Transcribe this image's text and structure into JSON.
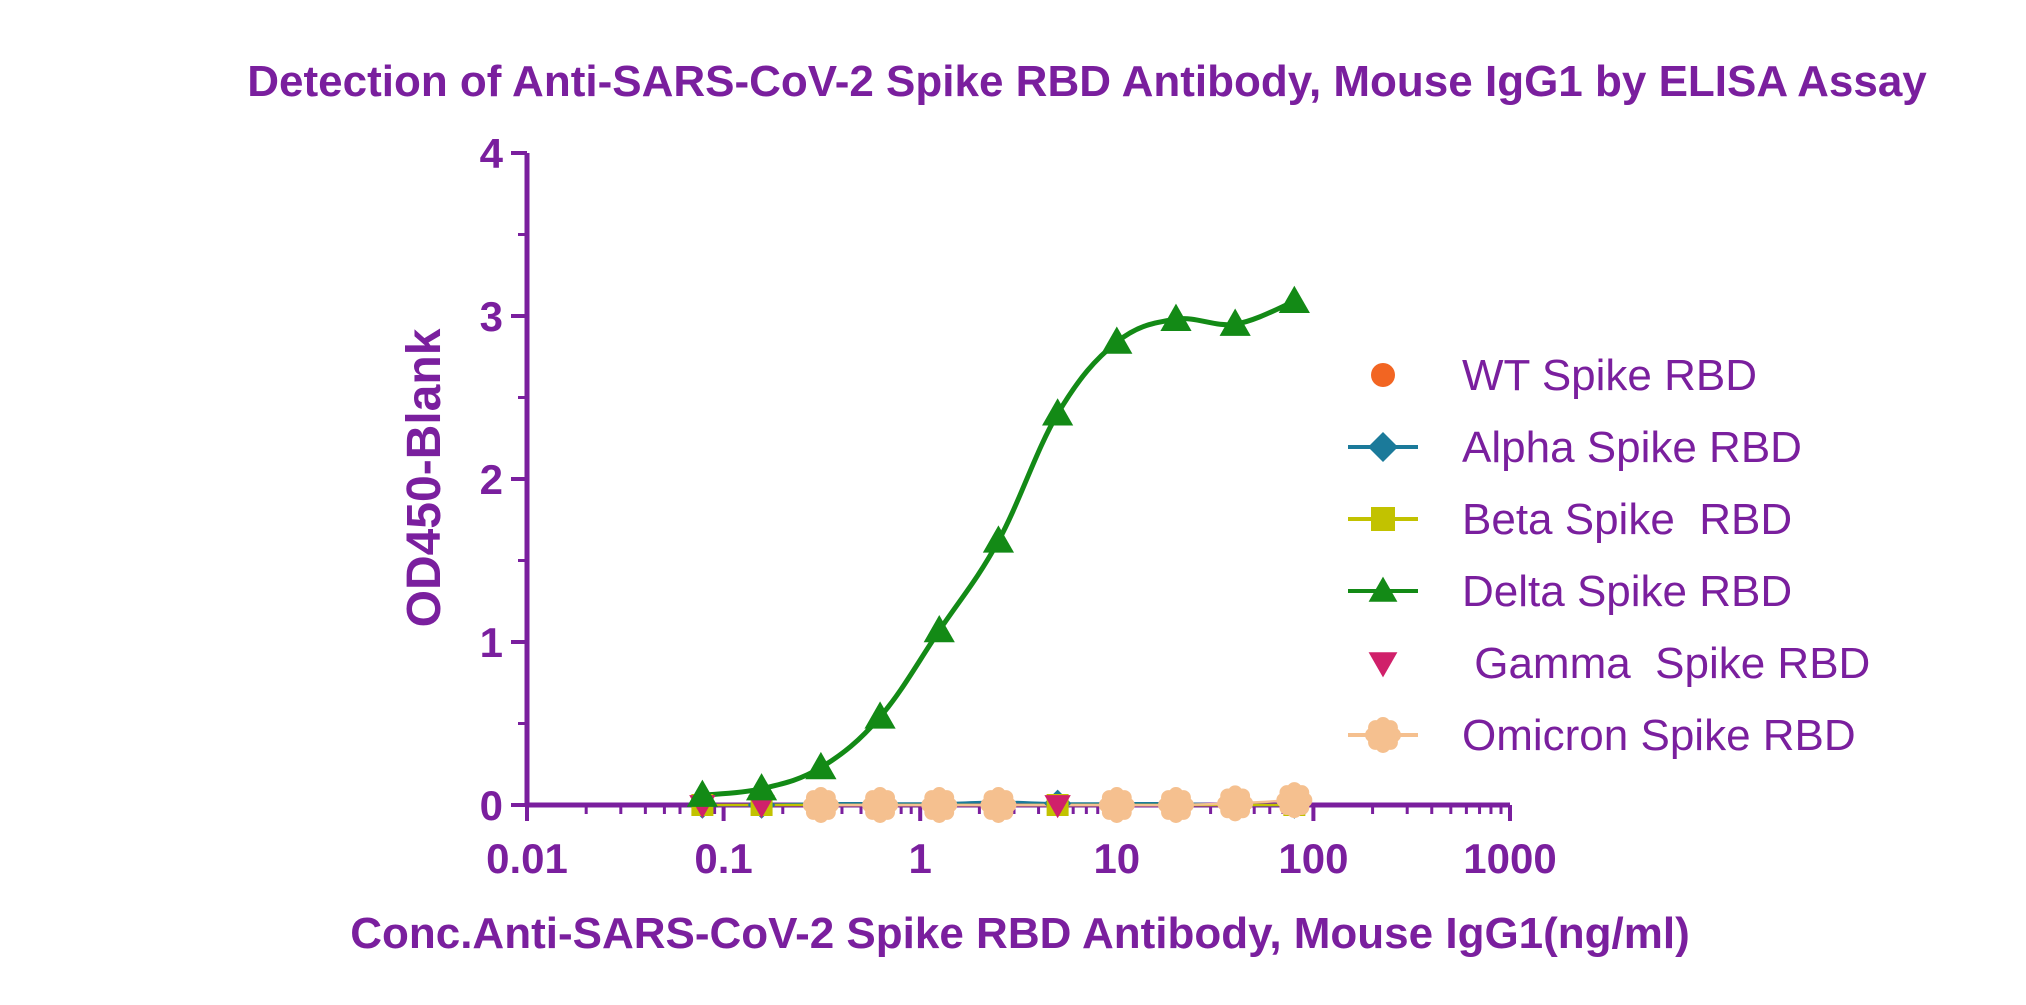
{
  "chart_data": {
    "type": "scatter",
    "title": "Detection of Anti-SARS-CoV-2 Spike RBD Antibody, Mouse IgG1 by ELISA Assay",
    "xlabel": "Conc.Anti-SARS-CoV-2 Spike RBD Antibody, Mouse IgG1(ng/ml)",
    "ylabel": "OD450-Blank",
    "x_scale": "log",
    "xlim": [
      0.01,
      1000
    ],
    "ylim": [
      0,
      4
    ],
    "x_ticks": [
      0.01,
      0.1,
      1,
      10,
      100,
      1000
    ],
    "x_tick_labels": [
      "0.01",
      "0.1",
      "1",
      "10",
      "100",
      "1000"
    ],
    "y_ticks": [
      0,
      1,
      2,
      3,
      4
    ],
    "y_tick_labels": [
      "0",
      "1",
      "2",
      "3",
      "4"
    ],
    "grid": false,
    "legend_position": "right",
    "colors": {
      "text": "#7a1f9e",
      "axis": "#7a1f9e"
    },
    "series": [
      {
        "name": "WT Spike RBD",
        "marker": "circle",
        "color": "#f26522",
        "line": false,
        "x": [
          0.078,
          0.156,
          0.3125,
          0.625,
          1.25,
          2.5,
          5,
          10,
          20,
          40,
          80
        ],
        "y": [
          0.0,
          0.0,
          0.0,
          0.0,
          0.0,
          0.0,
          0.0,
          0.0,
          0.01,
          0.02,
          0.04
        ]
      },
      {
        "name": "Alpha Spike RBD",
        "marker": "diamond",
        "color": "#1b7a9a",
        "line": true,
        "x": [
          0.078,
          0.156,
          0.3125,
          0.625,
          1.25,
          2.5,
          5,
          10,
          20,
          40,
          80
        ],
        "y": [
          0.0,
          0.0,
          0.01,
          0.01,
          0.01,
          0.02,
          0.01,
          0.01,
          0.01,
          0.0,
          0.0
        ]
      },
      {
        "name": "Beta Spike  RBD",
        "marker": "square",
        "color": "#c2c200",
        "line": true,
        "x": [
          0.078,
          0.156,
          0.3125,
          0.625,
          1.25,
          2.5,
          5,
          10,
          20,
          40,
          80
        ],
        "y": [
          0.0,
          0.0,
          0.0,
          0.0,
          0.0,
          0.0,
          0.0,
          0.0,
          0.0,
          0.0,
          0.0
        ]
      },
      {
        "name": "Delta Spike RBD",
        "marker": "triangle-up",
        "color": "#138a16",
        "line": true,
        "x": [
          0.078,
          0.156,
          0.3125,
          0.625,
          1.25,
          2.5,
          5,
          10,
          20,
          40,
          80
        ],
        "y": [
          0.06,
          0.1,
          0.23,
          0.54,
          1.07,
          1.62,
          2.4,
          2.84,
          2.98,
          2.95,
          3.09
        ]
      },
      {
        "name": " Gamma  Spike RBD",
        "marker": "triangle-down",
        "color": "#d0206a",
        "line": false,
        "x": [
          0.078,
          0.156,
          0.3125,
          0.625,
          1.25,
          2.5,
          5,
          10,
          20,
          40,
          80
        ],
        "y": [
          0.0,
          0.0,
          0.0,
          0.0,
          0.0,
          0.0,
          0.0,
          0.0,
          0.0,
          0.0,
          0.0
        ]
      },
      {
        "name": "Omicron Spike RBD",
        "marker": "flower",
        "color": "#f5c08f",
        "line": true,
        "x": [
          0.3125,
          0.625,
          1.25,
          2.5,
          10,
          20,
          40,
          80
        ],
        "y": [
          0.0,
          0.0,
          0.0,
          0.0,
          0.0,
          0.0,
          0.01,
          0.03
        ]
      }
    ]
  }
}
